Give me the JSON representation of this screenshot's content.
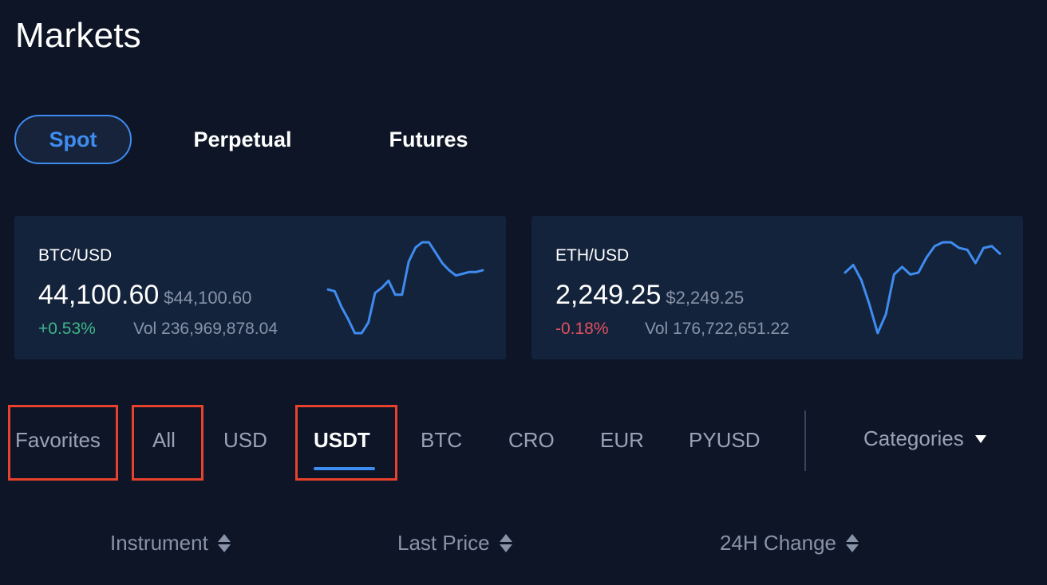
{
  "header": {
    "title": "Markets"
  },
  "market_types": [
    {
      "label": "Spot",
      "active": true
    },
    {
      "label": "Perpetual",
      "active": false
    },
    {
      "label": "Futures",
      "active": false
    }
  ],
  "tickers": [
    {
      "pair": "BTC/USD",
      "price": "44,100.60",
      "price_fiat": "$44,100.60",
      "change": "+0.53%",
      "change_direction": "up",
      "volume": "Vol 236,969,878.04",
      "sparkline": [
        45,
        44,
        35,
        28,
        20,
        20,
        26,
        43,
        46,
        50,
        42,
        42,
        61,
        69,
        72,
        72,
        66,
        60,
        56,
        53,
        54,
        55,
        55,
        56
      ]
    },
    {
      "pair": "ETH/USD",
      "price": "2,249.25",
      "price_fiat": "$2,249.25",
      "change": "-0.18%",
      "change_direction": "down",
      "volume": "Vol 176,722,651.22",
      "sparkline": [
        52,
        56,
        48,
        35,
        20,
        30,
        51,
        55,
        51,
        52,
        60,
        66,
        68,
        68,
        65,
        64,
        57,
        65,
        66,
        62
      ]
    }
  ],
  "quote_tabs": [
    {
      "label": "Favorites",
      "active": false,
      "highlighted": true
    },
    {
      "label": "All",
      "active": false,
      "highlighted": true
    },
    {
      "label": "USD",
      "active": false,
      "highlighted": false
    },
    {
      "label": "USDT",
      "active": true,
      "highlighted": true
    },
    {
      "label": "BTC",
      "active": false,
      "highlighted": false
    },
    {
      "label": "CRO",
      "active": false,
      "highlighted": false
    },
    {
      "label": "EUR",
      "active": false,
      "highlighted": false
    },
    {
      "label": "PYUSD",
      "active": false,
      "highlighted": false
    }
  ],
  "categories": {
    "label": "Categories"
  },
  "columns": [
    {
      "label": "Instrument"
    },
    {
      "label": "Last Price"
    },
    {
      "label": "24H Change"
    }
  ],
  "colors": {
    "background": "#0d1526",
    "card": "#14233c",
    "accent": "#3f8cf0",
    "positive": "#3fb58a",
    "negative": "#e2505f",
    "highlight": "#e8412c"
  },
  "icons": {
    "sort": "sort-icon",
    "caret": "chevron-down-icon"
  }
}
